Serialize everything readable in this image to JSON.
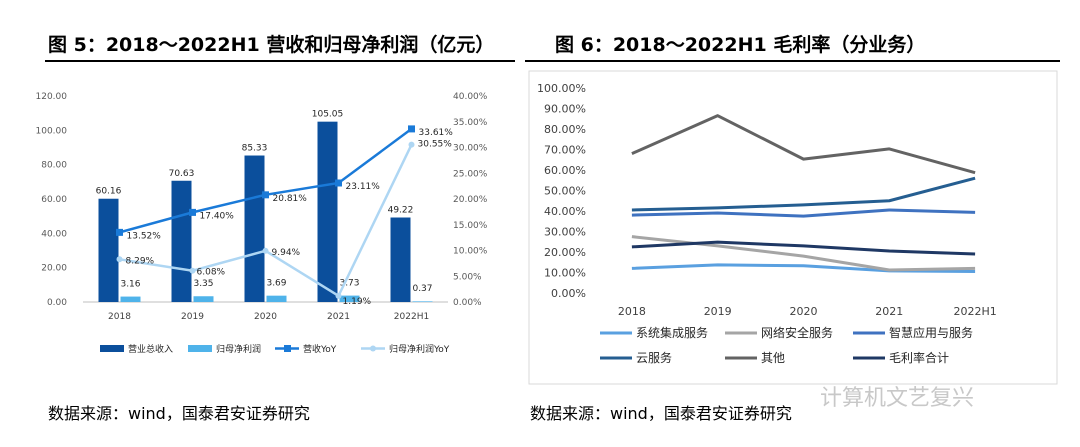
{
  "fig5": {
    "title": "图 5：2018～2022H1 营收和归母净利润（亿元）",
    "source": "数据来源：wind，国泰君安证券研究",
    "chart_data": {
      "type": "bar",
      "categories": [
        "2018",
        "2019",
        "2020",
        "2021",
        "2022H1"
      ],
      "series": [
        {
          "name": "营业总收入",
          "kind": "bar",
          "axis": "left",
          "color": "#0b4f9c",
          "values": [
            60.16,
            70.63,
            85.33,
            105.05,
            49.22
          ]
        },
        {
          "name": "归母净利润",
          "kind": "bar",
          "axis": "left",
          "color": "#4fb3ea",
          "values": [
            3.16,
            3.35,
            3.69,
            3.73,
            0.37
          ]
        },
        {
          "name": "营收YoY",
          "kind": "line",
          "axis": "right",
          "color": "#1a7ad8",
          "values": [
            13.52,
            17.4,
            20.81,
            23.11,
            33.61
          ]
        },
        {
          "name": "归母净利润YoY",
          "kind": "line",
          "axis": "right",
          "color": "#aed6f3",
          "values": [
            8.29,
            6.08,
            9.94,
            1.19,
            30.55
          ]
        }
      ],
      "labels": {
        "bar1": [
          "60.16",
          "70.63",
          "85.33",
          "105.05",
          "49.22"
        ],
        "bar2": [
          "3.16",
          "3.35",
          "3.69",
          "3.73",
          "0.37"
        ],
        "line1": [
          "13.52%",
          "17.40%",
          "20.81%",
          "23.11%",
          "33.61%"
        ],
        "line2": [
          "8.29%",
          "6.08%",
          "9.94%",
          "1.19%",
          "30.55%"
        ]
      },
      "ylim_left": [
        0,
        120
      ],
      "ylim_right": [
        0,
        40
      ],
      "left_ticks": [
        "0.00",
        "20.00",
        "40.00",
        "60.00",
        "80.00",
        "100.00",
        "120.00"
      ],
      "right_ticks": [
        "0.00%",
        "5.00%",
        "10.00%",
        "15.00%",
        "20.00%",
        "25.00%",
        "30.00%",
        "35.00%",
        "40.00%"
      ],
      "legend_position": "bottom",
      "grid": false
    }
  },
  "fig6": {
    "title": "图 6：2018～2022H1 毛利率（分业务）",
    "source": "数据来源：wind，国泰君安证券研究",
    "chart_data": {
      "type": "line",
      "categories": [
        "2018",
        "2019",
        "2020",
        "2021",
        "2022H1"
      ],
      "series": [
        {
          "name": "系统集成服务",
          "color": "#5aa0e0",
          "values": [
            12.0,
            13.7,
            13.3,
            10.8,
            10.5
          ]
        },
        {
          "name": "网络安全服务",
          "color": "#a5a5a5",
          "values": [
            27.5,
            23.0,
            18.0,
            11.2,
            12.0
          ]
        },
        {
          "name": "智慧应用与服务",
          "color": "#3f72c0",
          "values": [
            38.0,
            39.0,
            37.5,
            40.5,
            39.3
          ]
        },
        {
          "name": "云服务",
          "color": "#255e91",
          "values": [
            40.5,
            41.5,
            43.0,
            45.0,
            56.0
          ]
        },
        {
          "name": "其他",
          "color": "#636363",
          "values": [
            68.0,
            86.5,
            65.3,
            70.3,
            58.7
          ]
        },
        {
          "name": "毛利率合计",
          "color": "#1f3864",
          "values": [
            22.5,
            24.8,
            23.0,
            20.5,
            19.0
          ]
        }
      ],
      "ylim": [
        0,
        100
      ],
      "y_ticks": [
        "0.00%",
        "10.00%",
        "20.00%",
        "30.00%",
        "40.00%",
        "50.00%",
        "60.00%",
        "70.00%",
        "80.00%",
        "90.00%",
        "100.00%"
      ],
      "legend_position": "bottom",
      "grid": false
    }
  },
  "watermark": "计算机文艺复兴"
}
